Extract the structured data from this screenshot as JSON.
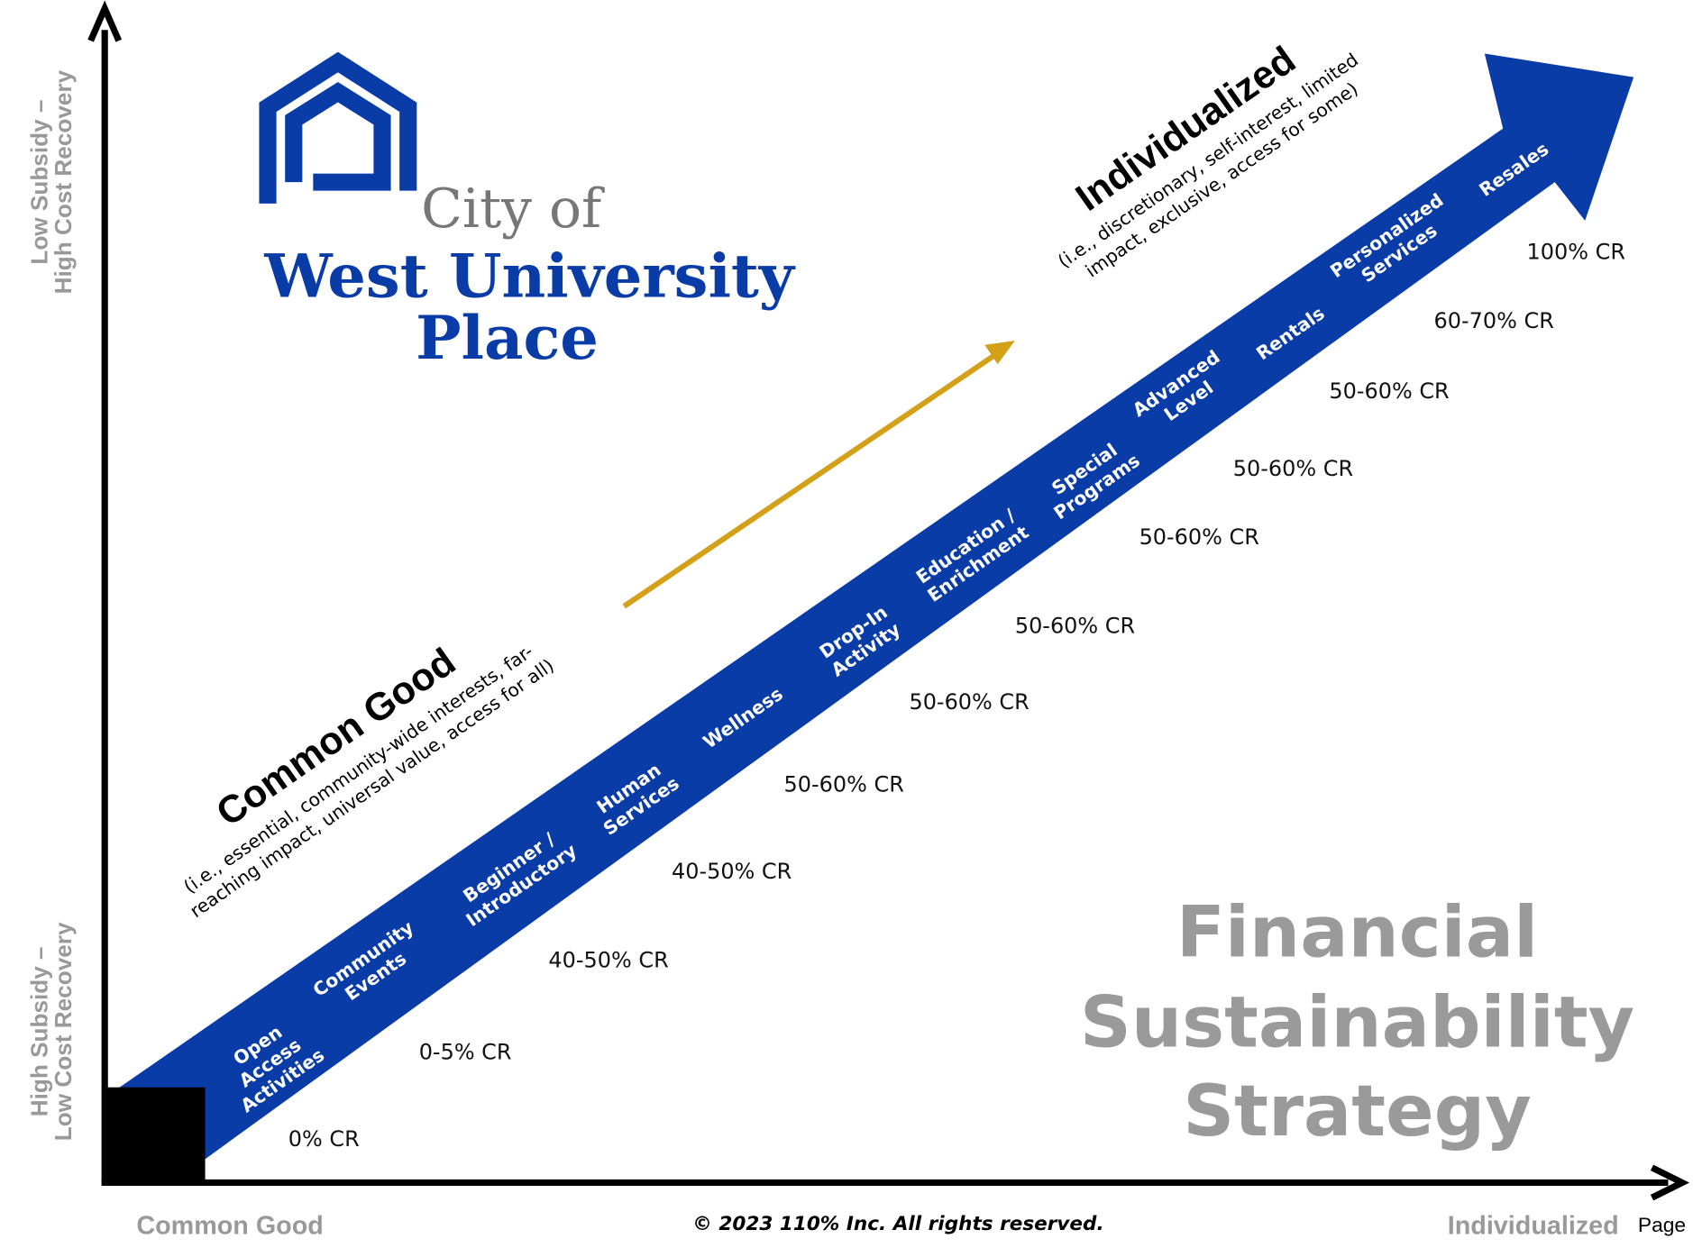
{
  "logo": {
    "line1": "City of",
    "line2": "West University",
    "line3": "Place"
  },
  "y_axis": {
    "top": [
      "Low Subsidy –",
      "High Cost Recovery"
    ],
    "bottom": [
      "High Subsidy –",
      "Low Cost Recovery"
    ]
  },
  "x_axis": {
    "left": "Common Good",
    "right": "Individualized",
    "page": "Page"
  },
  "footer": "© 2023 110% Inc.  All rights reserved.",
  "title": [
    "Financial",
    "Sustainability",
    "Strategy"
  ],
  "common_good": {
    "heading": "Common Good",
    "description": [
      "(i.e., essential, community-wide interests, far-",
      "reaching impact, universal value, access for all)"
    ]
  },
  "individualized": {
    "heading": "Individualized",
    "description": [
      "(i.e., discretionary, self-interest, limited",
      "impact, exclusive, access for some)"
    ]
  },
  "items": [
    {
      "label": [
        "Open",
        "Access",
        "Activities"
      ],
      "cost_recovery": "0% CR"
    },
    {
      "label": [
        "Community",
        "Events"
      ],
      "cost_recovery": "0-5% CR"
    },
    {
      "label": [
        "Beginner /",
        "Introductory"
      ],
      "cost_recovery": "40-50% CR"
    },
    {
      "label": [
        "Human",
        "Services"
      ],
      "cost_recovery": "40-50% CR"
    },
    {
      "label": [
        "Wellness"
      ],
      "cost_recovery": "50-60% CR"
    },
    {
      "label": [
        "Drop-In",
        "Activity"
      ],
      "cost_recovery": "50-60% CR"
    },
    {
      "label": [
        "Education /",
        "Enrichment"
      ],
      "cost_recovery": "50-60% CR"
    },
    {
      "label": [
        "Special",
        "Programs"
      ],
      "cost_recovery": "50-60% CR"
    },
    {
      "label": [
        "Advanced",
        "Level"
      ],
      "cost_recovery": "50-60% CR"
    },
    {
      "label": [
        "Rentals"
      ],
      "cost_recovery": "50-60% CR"
    },
    {
      "label": [
        "Personalized",
        "Services"
      ],
      "cost_recovery": "60-70% CR"
    },
    {
      "label": [
        "Resales"
      ],
      "cost_recovery": "100% CR"
    }
  ]
}
